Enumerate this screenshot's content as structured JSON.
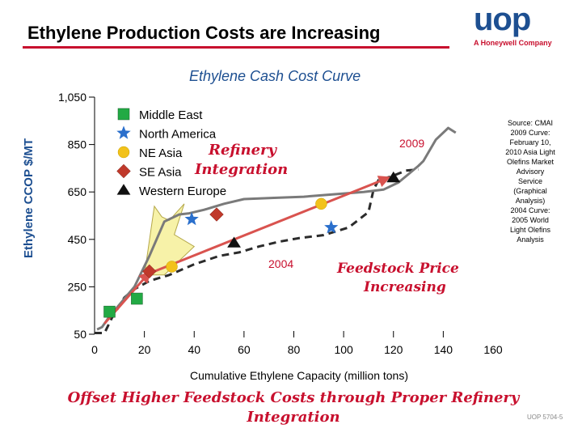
{
  "header": {
    "title": "Ethylene Production Costs are Increasing",
    "logo_word": "uop",
    "logo_subtitle": "A Honeywell Company",
    "brand_color": "#1d4f91",
    "accent_color": "#c8102e"
  },
  "source_note": [
    "Source: CMAI",
    "2009 Curve:",
    "February 10,",
    "2010 Asia Light",
    "Olefins Market",
    "Advisory",
    "Service",
    "(Graphical",
    "Analysis)",
    "2004 Curve:",
    "2005 World",
    "Light Olefins",
    "Analysis"
  ],
  "footer": {
    "line1": "Offset Higher Feedstock Costs through Proper Refinery",
    "line2": "Integration",
    "page_code": "UOP 5704-5"
  },
  "chart_data": {
    "type": "line",
    "title": "Ethylene Cash Cost Curve",
    "xlabel": "Cumulative Ethylene Capacity (million tons)",
    "ylabel": "Ethylene CCOP $/MT",
    "xlim": [
      0,
      160
    ],
    "ylim": [
      50,
      1050
    ],
    "x_ticks": [
      0,
      20,
      40,
      60,
      80,
      100,
      120,
      140,
      160
    ],
    "y_ticks": [
      50,
      250,
      450,
      650,
      850,
      1050
    ],
    "x_tick_labels": [
      "0",
      "20",
      "40",
      "60",
      "80",
      "100",
      "120",
      "140",
      "160"
    ],
    "y_tick_labels": [
      "50",
      "250",
      "450",
      "650",
      "850",
      "1,050"
    ],
    "series": [
      {
        "name": "2004",
        "style": "dashed",
        "color": "#2b2b2b",
        "points": [
          [
            0,
            55
          ],
          [
            4,
            55
          ],
          [
            7,
            120
          ],
          [
            12,
            205
          ],
          [
            16,
            240
          ],
          [
            22,
            275
          ],
          [
            30,
            300
          ],
          [
            40,
            345
          ],
          [
            50,
            380
          ],
          [
            58,
            395
          ],
          [
            66,
            420
          ],
          [
            74,
            440
          ],
          [
            82,
            455
          ],
          [
            92,
            468
          ],
          [
            102,
            500
          ],
          [
            110,
            565
          ],
          [
            112,
            660
          ],
          [
            114,
            700
          ],
          [
            119,
            715
          ],
          [
            125,
            740
          ],
          [
            130,
            745
          ]
        ]
      },
      {
        "name": "2009",
        "style": "solid",
        "color": "#7a7a7a",
        "points": [
          [
            1,
            70
          ],
          [
            3,
            80
          ],
          [
            6,
            125
          ],
          [
            10,
            175
          ],
          [
            16,
            250
          ],
          [
            22,
            380
          ],
          [
            28,
            525
          ],
          [
            34,
            555
          ],
          [
            38,
            560
          ],
          [
            44,
            575
          ],
          [
            52,
            600
          ],
          [
            60,
            620
          ],
          [
            72,
            625
          ],
          [
            84,
            630
          ],
          [
            96,
            640
          ],
          [
            108,
            650
          ],
          [
            116,
            660
          ],
          [
            122,
            690
          ],
          [
            130,
            760
          ],
          [
            132,
            780
          ],
          [
            137,
            870
          ],
          [
            142,
            920
          ],
          [
            145,
            900
          ]
        ]
      }
    ],
    "markers": [
      {
        "region": "Western Europe",
        "x": 56,
        "y": 435
      },
      {
        "region": "Western Europe",
        "x": 120,
        "y": 710
      },
      {
        "region": "Middle East",
        "x": 6,
        "y": 145
      },
      {
        "region": "Middle East",
        "x": 17,
        "y": 200
      },
      {
        "region": "SE Asia",
        "x": 22,
        "y": 315
      },
      {
        "region": "SE Asia",
        "x": 49,
        "y": 555
      },
      {
        "region": "NE Asia",
        "x": 31,
        "y": 335
      },
      {
        "region": "NE Asia",
        "x": 91,
        "y": 600
      },
      {
        "region": "North America",
        "x": 39,
        "y": 535
      },
      {
        "region": "North America",
        "x": 95,
        "y": 500
      }
    ],
    "legend": [
      {
        "label": "Middle East",
        "shape": "square",
        "color": "#22aa44"
      },
      {
        "label": "North America",
        "shape": "star",
        "color": "#2a6fcc"
      },
      {
        "label": "NE Asia",
        "shape": "circle",
        "color": "#f2c21b"
      },
      {
        "label": "SE Asia",
        "shape": "diamond",
        "color": "#c0392b"
      },
      {
        "label": "Western Europe",
        "shape": "triangle",
        "color": "#111111"
      }
    ],
    "annotations": {
      "refinery_integration": [
        "Refinery",
        "Integration"
      ],
      "curve_label_2009": "2009",
      "curve_label_2004": "2004",
      "feedstock_price": [
        "Feedstock Price",
        "Increasing"
      ]
    },
    "arrows": [
      {
        "name": "cost-increase-arrow-left",
        "from": [
          4,
          95
        ],
        "to": [
          22,
          310
        ]
      },
      {
        "name": "cost-increase-arrow-main",
        "from": [
          24,
          315
        ],
        "to": [
          118,
          710
        ]
      }
    ]
  }
}
